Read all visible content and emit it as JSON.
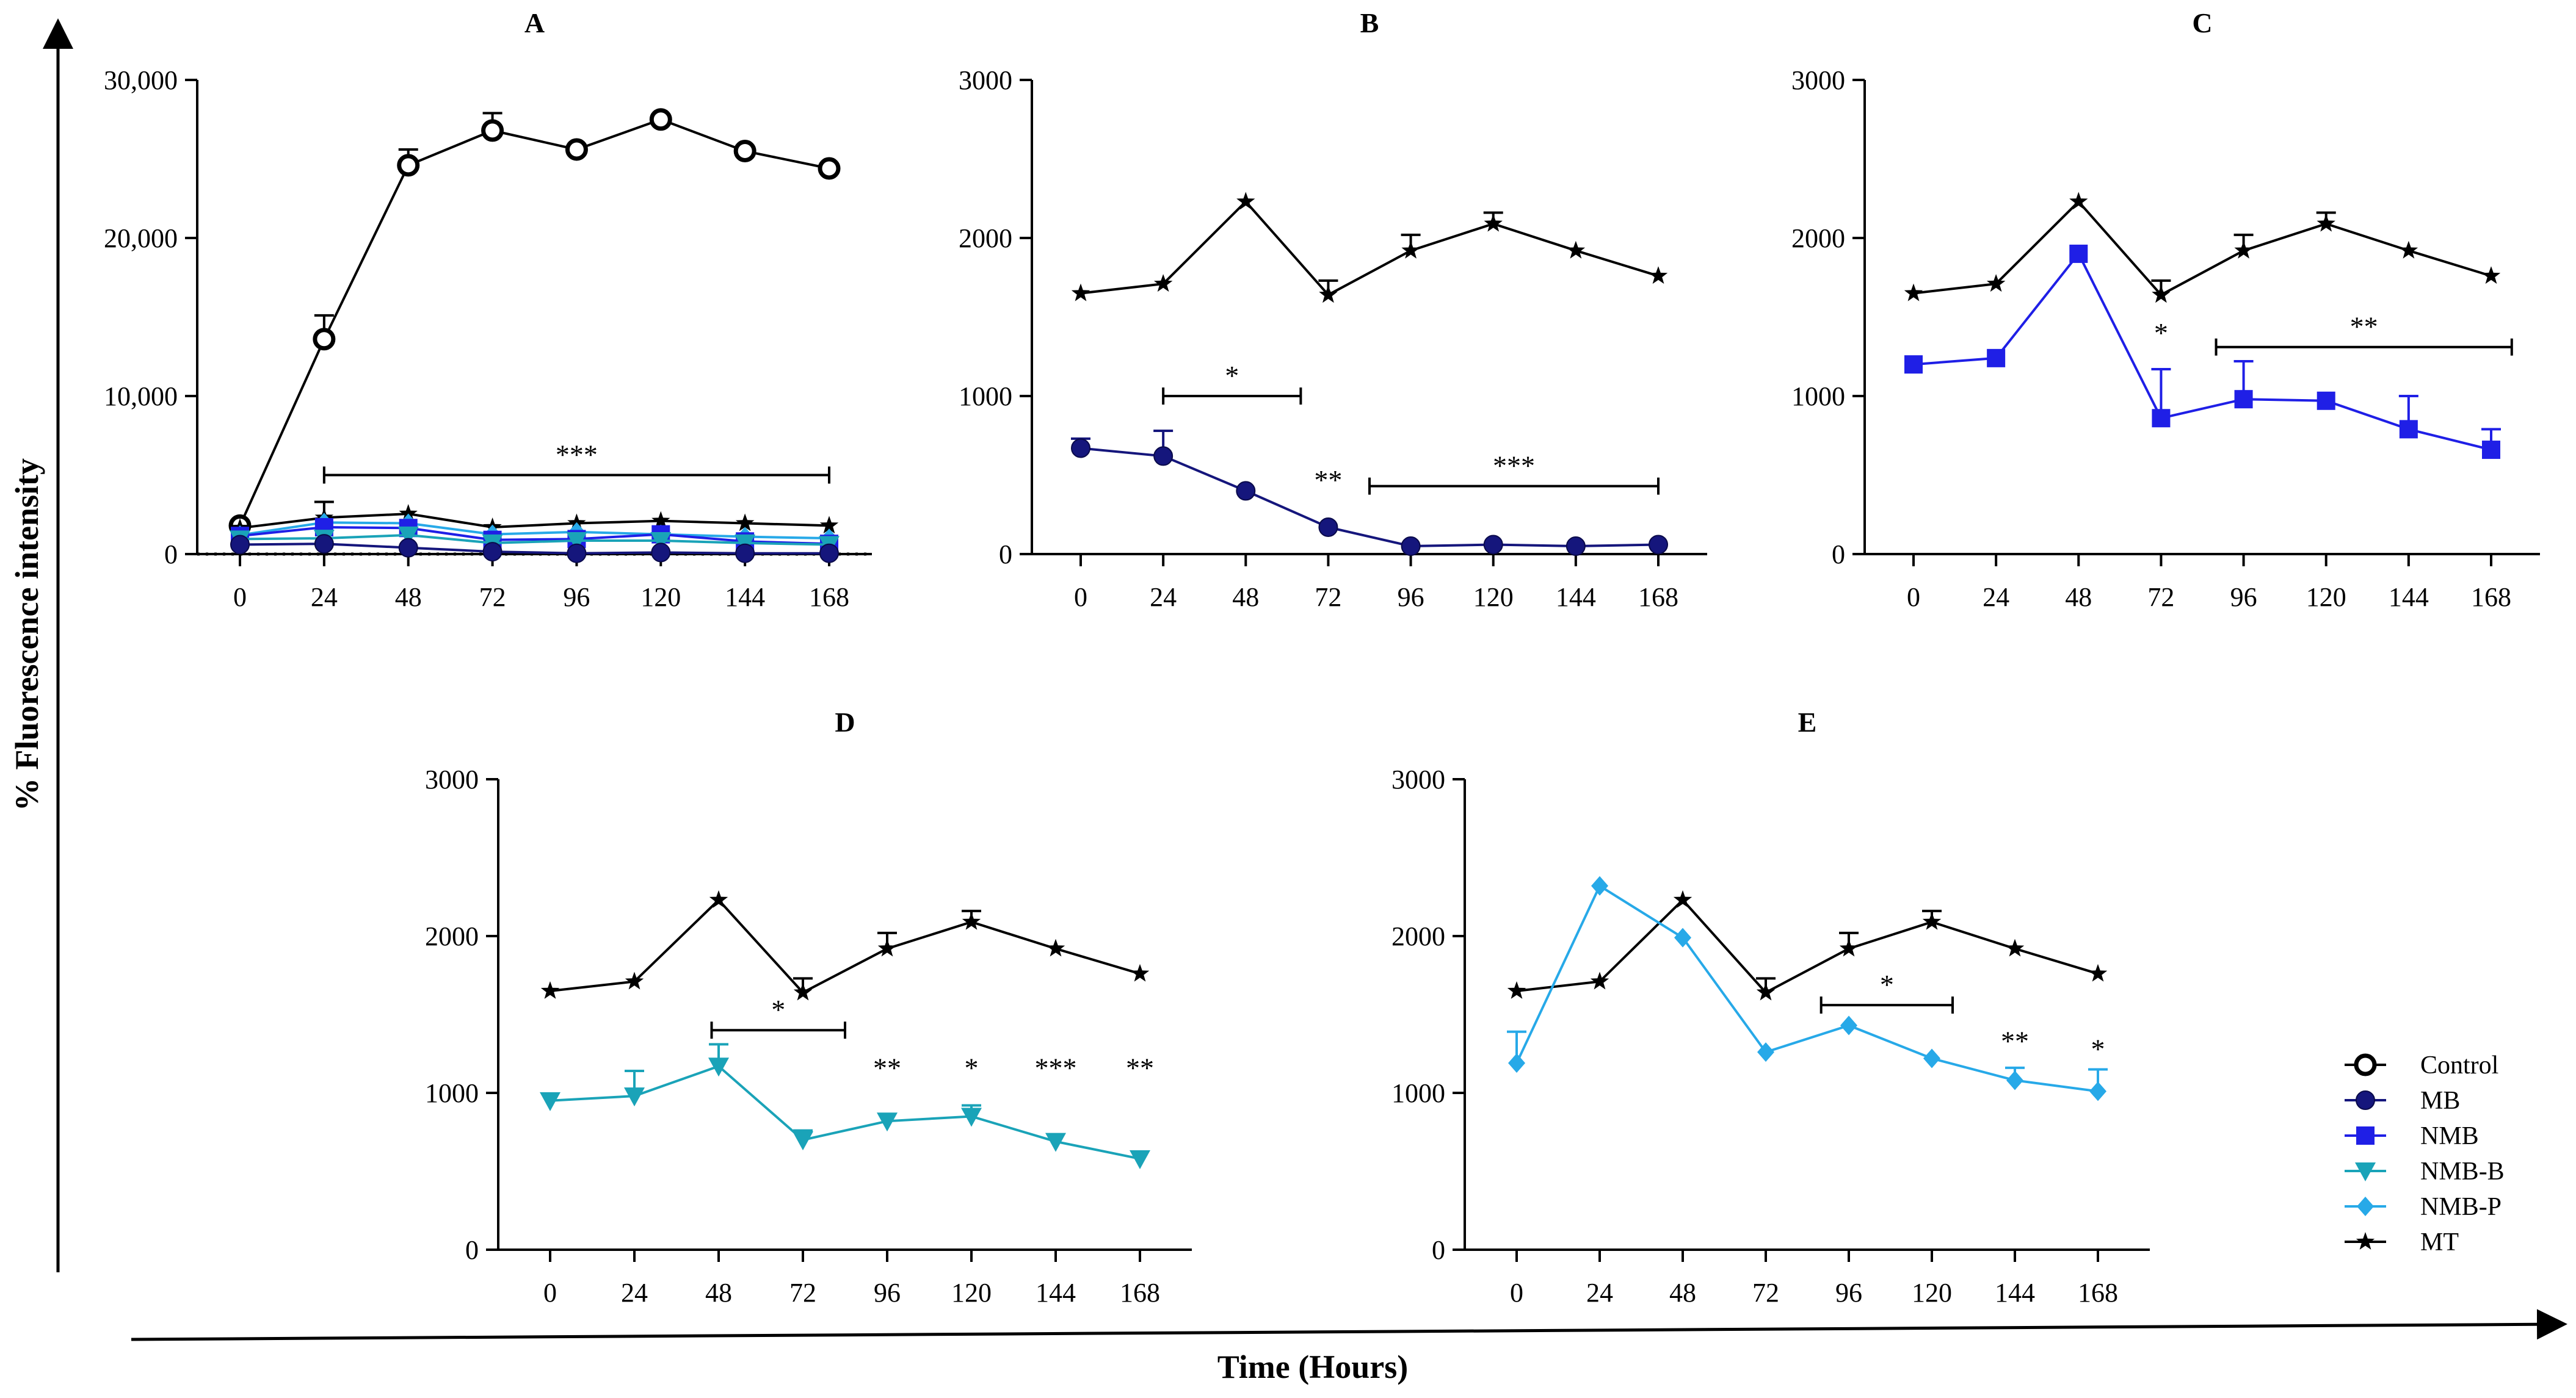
{
  "figure": {
    "y_label": "% Fluorescence intensity",
    "x_label": "Time (Hours)"
  },
  "colors": {
    "Control": "#000000",
    "MB": "#15167c",
    "NMB": "#1f1fe6",
    "NMB-B": "#1aa3b8",
    "NMB-P": "#27a9e8",
    "MT": "#000000"
  },
  "legend": [
    {
      "name": "Control",
      "marker": "circle-open"
    },
    {
      "name": "MB",
      "marker": "circle"
    },
    {
      "name": "NMB",
      "marker": "square"
    },
    {
      "name": "NMB-B",
      "marker": "triangle-down"
    },
    {
      "name": "NMB-P",
      "marker": "diamond"
    },
    {
      "name": "MT",
      "marker": "star"
    }
  ],
  "chart_data": [
    {
      "panel": "A",
      "type": "line",
      "title": "A",
      "categories": [
        0,
        24,
        48,
        72,
        96,
        120,
        144,
        168
      ],
      "ylim": [
        0,
        30000
      ],
      "yticks": [
        0,
        10000,
        20000,
        30000
      ],
      "ytick_labels": [
        "0",
        "10,000",
        "20,000",
        "30,000"
      ],
      "series": [
        {
          "name": "Control",
          "values": [
            1800,
            13600,
            24600,
            26800,
            25600,
            27500,
            25500,
            24400
          ],
          "errors": [
            0,
            1500,
            1000,
            1100,
            0,
            0,
            0,
            0
          ]
        },
        {
          "name": "MT",
          "values": [
            1650,
            2300,
            2550,
            1700,
            1950,
            2100,
            1950,
            1800
          ],
          "errors": [
            0,
            1000,
            0,
            0,
            0,
            0,
            0,
            0
          ]
        },
        {
          "name": "NMB-P",
          "values": [
            1200,
            2000,
            1950,
            1250,
            1400,
            1250,
            1100,
            1000
          ]
        },
        {
          "name": "NMB",
          "values": [
            1150,
            1700,
            1650,
            900,
            950,
            1250,
            800,
            650
          ]
        },
        {
          "name": "NMB-B",
          "values": [
            950,
            1000,
            1200,
            700,
            850,
            850,
            700,
            600
          ]
        },
        {
          "name": "MB",
          "values": [
            600,
            650,
            400,
            150,
            50,
            100,
            50,
            50
          ]
        }
      ],
      "annotations": [
        {
          "label": "***",
          "from": 24,
          "to": 168,
          "y": 5000
        }
      ]
    },
    {
      "panel": "B",
      "type": "line",
      "title": "B",
      "categories": [
        0,
        24,
        48,
        72,
        96,
        120,
        144,
        168
      ],
      "ylim": [
        0,
        3000
      ],
      "yticks": [
        0,
        1000,
        2000,
        3000
      ],
      "ytick_labels": [
        "0",
        "1000",
        "2000",
        "3000"
      ],
      "series": [
        {
          "name": "MT",
          "values": [
            1650,
            1710,
            2230,
            1640,
            1920,
            2090,
            1920,
            1760
          ],
          "errors": [
            0,
            0,
            0,
            90,
            100,
            70,
            0,
            0
          ]
        },
        {
          "name": "MB",
          "values": [
            670,
            620,
            400,
            170,
            50,
            60,
            50,
            60
          ],
          "errors": [
            60,
            160,
            0,
            0,
            0,
            0,
            0,
            0
          ]
        }
      ],
      "annotations": [
        {
          "label": "*",
          "from": 24,
          "to": 64,
          "y": 1000
        },
        {
          "label": "**",
          "at": 72,
          "y": 340
        },
        {
          "label": "***",
          "from": 84,
          "to": 168,
          "y": 430
        }
      ]
    },
    {
      "panel": "C",
      "type": "line",
      "title": "C",
      "categories": [
        0,
        24,
        48,
        72,
        96,
        120,
        144,
        168
      ],
      "ylim": [
        0,
        3000
      ],
      "yticks": [
        0,
        1000,
        2000,
        3000
      ],
      "ytick_labels": [
        "0",
        "1000",
        "2000",
        "3000"
      ],
      "series": [
        {
          "name": "MT",
          "values": [
            1650,
            1710,
            2230,
            1640,
            1920,
            2090,
            1920,
            1760
          ],
          "errors": [
            0,
            0,
            0,
            90,
            100,
            70,
            0,
            0
          ]
        },
        {
          "name": "NMB",
          "values": [
            1200,
            1240,
            1900,
            860,
            980,
            970,
            790,
            660
          ],
          "errors": [
            0,
            0,
            0,
            310,
            240,
            0,
            210,
            130
          ]
        }
      ],
      "annotations": [
        {
          "label": "*",
          "at": 72,
          "y": 1270
        },
        {
          "label": "**",
          "from": 88,
          "to": 174,
          "y": 1310
        }
      ]
    },
    {
      "panel": "D",
      "type": "line",
      "title": "D",
      "categories": [
        0,
        24,
        48,
        72,
        96,
        120,
        144,
        168
      ],
      "ylim": [
        0,
        3000
      ],
      "yticks": [
        0,
        1000,
        2000,
        3000
      ],
      "ytick_labels": [
        "0",
        "1000",
        "2000",
        "3000"
      ],
      "series": [
        {
          "name": "MT",
          "values": [
            1650,
            1710,
            2230,
            1640,
            1920,
            2090,
            1920,
            1760
          ],
          "errors": [
            0,
            0,
            0,
            90,
            100,
            70,
            0,
            0
          ]
        },
        {
          "name": "NMB-B",
          "values": [
            950,
            980,
            1170,
            700,
            820,
            850,
            690,
            580
          ],
          "errors": [
            0,
            160,
            140,
            60,
            0,
            70,
            0,
            0
          ]
        }
      ],
      "annotations": [
        {
          "label": "*",
          "from": 46,
          "to": 84,
          "y": 1400
        },
        {
          "label": "**",
          "at": 96,
          "y": 1030
        },
        {
          "label": "*",
          "at": 120,
          "y": 1030
        },
        {
          "label": "***",
          "at": 144,
          "y": 1030
        },
        {
          "label": "**",
          "at": 168,
          "y": 1030
        }
      ]
    },
    {
      "panel": "E",
      "type": "line",
      "title": "E",
      "categories": [
        0,
        24,
        48,
        72,
        96,
        120,
        144,
        168
      ],
      "ylim": [
        0,
        3000
      ],
      "yticks": [
        0,
        1000,
        2000,
        3000
      ],
      "ytick_labels": [
        "0",
        "1000",
        "2000",
        "3000"
      ],
      "series": [
        {
          "name": "MT",
          "values": [
            1650,
            1710,
            2230,
            1640,
            1920,
            2090,
            1920,
            1760
          ],
          "errors": [
            0,
            0,
            0,
            90,
            100,
            70,
            0,
            0
          ]
        },
        {
          "name": "NMB-P",
          "values": [
            1190,
            2320,
            1990,
            1260,
            1430,
            1220,
            1080,
            1010
          ],
          "errors": [
            200,
            0,
            0,
            0,
            0,
            0,
            80,
            140
          ]
        }
      ],
      "annotations": [
        {
          "label": "*",
          "from": 88,
          "to": 126,
          "y": 1560
        },
        {
          "label": "**",
          "at": 144,
          "y": 1200
        },
        {
          "label": "*",
          "at": 168,
          "y": 1150
        }
      ]
    }
  ]
}
